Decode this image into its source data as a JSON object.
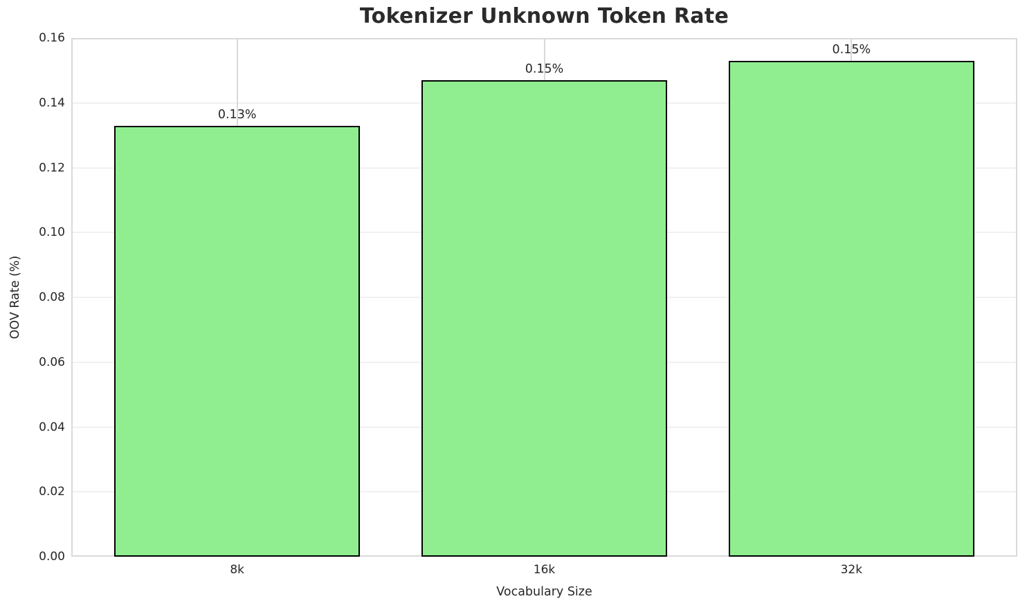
{
  "chart_data": {
    "type": "bar",
    "title": "Tokenizer Unknown Token Rate",
    "xlabel": "Vocabulary Size",
    "ylabel": "OOV Rate (%)",
    "categories": [
      "8k",
      "16k",
      "32k"
    ],
    "values": [
      0.133,
      0.147,
      0.153
    ],
    "bar_labels": [
      "0.13%",
      "0.15%",
      "0.15%"
    ],
    "ylim": [
      0,
      0.16
    ],
    "yticks": [
      0.0,
      0.02,
      0.04,
      0.06,
      0.08,
      0.1,
      0.12,
      0.14,
      0.16
    ],
    "ytick_labels": [
      "0.00",
      "0.02",
      "0.04",
      "0.06",
      "0.08",
      "0.10",
      "0.12",
      "0.14",
      "0.16"
    ],
    "grid": true,
    "legend": "none",
    "bar_fill_color": "#90EE90",
    "bar_edge_color": "#000000"
  }
}
